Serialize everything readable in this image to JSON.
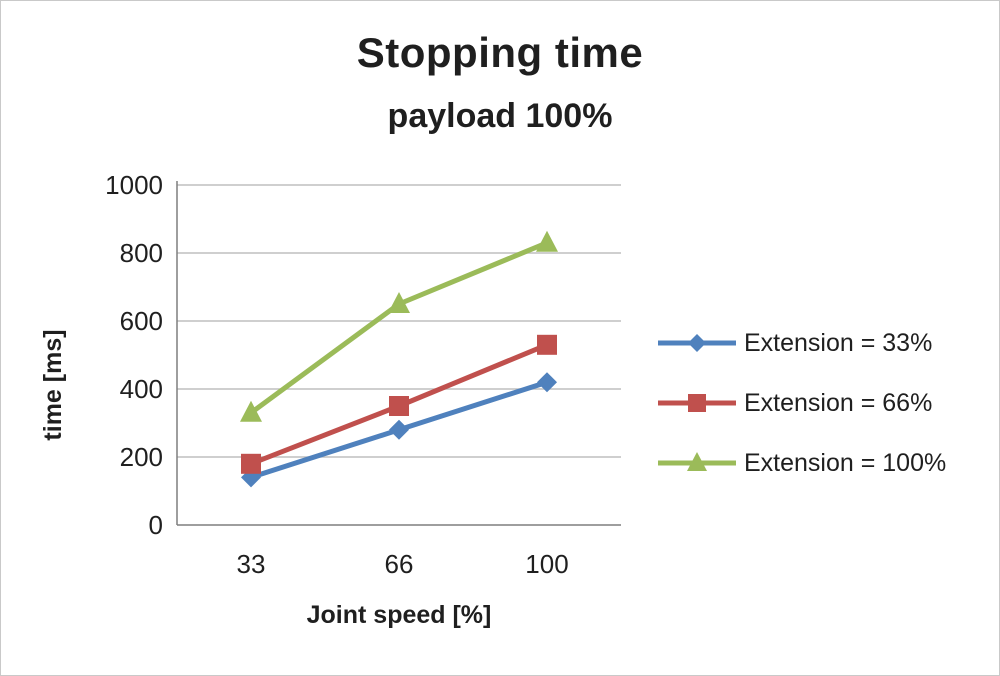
{
  "title": "Stopping time",
  "subtitle": "payload 100%",
  "chart_data": {
    "type": "line",
    "categories": [
      "33",
      "66",
      "100"
    ],
    "series": [
      {
        "name": "Extension = 33%",
        "values": [
          140,
          280,
          420
        ],
        "color": "#4F81BD",
        "marker": "diamond"
      },
      {
        "name": "Extension = 66%",
        "values": [
          180,
          350,
          530
        ],
        "color": "#C0504D",
        "marker": "square"
      },
      {
        "name": "Extension = 100%",
        "values": [
          330,
          650,
          830
        ],
        "color": "#9BBB59",
        "marker": "triangle"
      }
    ],
    "xlabel": "Joint speed [%]",
    "ylabel": "time [ms]",
    "ylim": [
      0,
      1000
    ],
    "yticks": [
      0,
      200,
      400,
      600,
      800,
      1000
    ],
    "grid": true,
    "legend_position": "right",
    "colors": {
      "gridline": "#bfbfbf",
      "axis": "#7f7f7f",
      "text": "#1f1f1f"
    }
  }
}
